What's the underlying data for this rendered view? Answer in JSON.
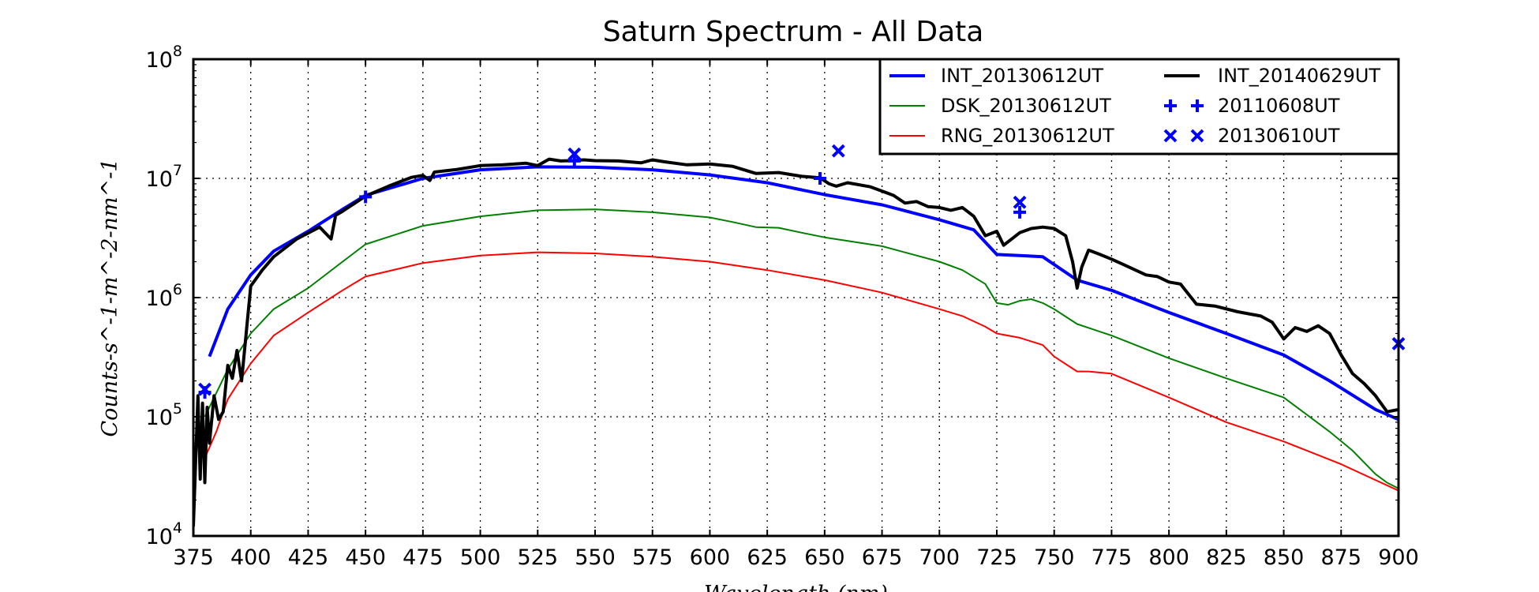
{
  "chart_data": {
    "type": "line",
    "title": "Saturn Spectrum - All Data",
    "ylabel": "Counts-s^-1-m^-2-nm^-1",
    "xlabel": "Wavelength (nm)",
    "xlim": [
      375,
      900
    ],
    "ylim": [
      10000,
      100000000
    ],
    "yscale": "log",
    "grid": true,
    "legend_position": "top-right",
    "x_ticks": [
      "375",
      "400",
      "425",
      "450",
      "475",
      "500",
      "525",
      "550",
      "575",
      "600",
      "625",
      "650",
      "675",
      "700",
      "725",
      "750",
      "775",
      "800",
      "825",
      "850",
      "875",
      "900"
    ],
    "y_ticks": [
      {
        "base": "10",
        "exp": "4",
        "value": 10000
      },
      {
        "base": "10",
        "exp": "5",
        "value": 100000
      },
      {
        "base": "10",
        "exp": "6",
        "value": 1000000
      },
      {
        "base": "10",
        "exp": "7",
        "value": 10000000
      },
      {
        "base": "10",
        "exp": "8",
        "value": 100000000
      }
    ],
    "series": [
      {
        "name": "INT_20130612UT",
        "kind": "line",
        "color": "#0000ff",
        "width": 4,
        "x": [
          382,
          390,
          400,
          410,
          425,
          440,
          450,
          475,
          500,
          525,
          550,
          575,
          600,
          625,
          650,
          675,
          700,
          715,
          725,
          735,
          745,
          760,
          775,
          800,
          825,
          850,
          870,
          890,
          900
        ],
        "y": [
          320000,
          800000,
          1550000,
          2450000,
          3600000,
          5500000,
          7200000,
          10000000,
          11800000,
          12500000,
          12400000,
          11800000,
          10700000,
          9200000,
          7300000,
          6000000,
          4500000,
          3700000,
          2300000,
          2250000,
          2200000,
          1400000,
          1150000,
          750000,
          500000,
          330000,
          200000,
          115000,
          95000
        ]
      },
      {
        "name": "INT_20140629UT",
        "kind": "line",
        "color": "#000000",
        "width": 4,
        "x": [
          375,
          377,
          378,
          379,
          380,
          381,
          382,
          384,
          386,
          388,
          390,
          392,
          394,
          396,
          398,
          400,
          405,
          410,
          420,
          430,
          435,
          437,
          440,
          450,
          460,
          470,
          475,
          478,
          480,
          490,
          500,
          510,
          520,
          525,
          530,
          535,
          540,
          545,
          550,
          560,
          570,
          575,
          580,
          590,
          600,
          610,
          620,
          630,
          640,
          648,
          652,
          655,
          660,
          670,
          680,
          685,
          690,
          695,
          700,
          705,
          710,
          715,
          720,
          725,
          728,
          735,
          740,
          745,
          750,
          755,
          758,
          760,
          762,
          765,
          770,
          775,
          780,
          790,
          795,
          800,
          805,
          808,
          812,
          820,
          830,
          840,
          845,
          850,
          855,
          860,
          865,
          870,
          875,
          880,
          885,
          890,
          895,
          900
        ],
        "y": [
          12000,
          150000,
          30000,
          130000,
          28000,
          120000,
          60000,
          150000,
          95000,
          110000,
          270000,
          210000,
          360000,
          200000,
          500000,
          1250000,
          1700000,
          2200000,
          3100000,
          3900000,
          3100000,
          4900000,
          5300000,
          7100000,
          8600000,
          10200000,
          10600000,
          9600000,
          11300000,
          11900000,
          12800000,
          13000000,
          13400000,
          12800000,
          14500000,
          14000000,
          14100000,
          14300000,
          14100000,
          14000000,
          13500000,
          14300000,
          13800000,
          13000000,
          13200000,
          12600000,
          11000000,
          11200000,
          10400000,
          10100000,
          9000000,
          8600000,
          9200000,
          8500000,
          7200000,
          6200000,
          6400000,
          5800000,
          5700000,
          5400000,
          5700000,
          4800000,
          3300000,
          3600000,
          2750000,
          3500000,
          3800000,
          3900000,
          3800000,
          3300000,
          2000000,
          1200000,
          1800000,
          2500000,
          2300000,
          2100000,
          1900000,
          1550000,
          1500000,
          1350000,
          1300000,
          1100000,
          880000,
          850000,
          760000,
          700000,
          620000,
          450000,
          560000,
          520000,
          580000,
          500000,
          330000,
          230000,
          190000,
          150000,
          110000,
          115000
        ]
      },
      {
        "name": "DSK_20130612UT",
        "kind": "line",
        "color": "#008000",
        "width": 2,
        "x": [
          380,
          390,
          400,
          410,
          425,
          440,
          450,
          475,
          500,
          525,
          550,
          575,
          600,
          610,
          620,
          630,
          640,
          650,
          675,
          700,
          710,
          720,
          725,
          730,
          735,
          740,
          745,
          750,
          760,
          775,
          800,
          825,
          850,
          870,
          880,
          890,
          895,
          900
        ],
        "y": [
          100000,
          250000,
          500000,
          800000,
          1200000,
          2000000,
          2800000,
          4000000,
          4800000,
          5400000,
          5500000,
          5200000,
          4700000,
          4300000,
          3900000,
          3850000,
          3500000,
          3200000,
          2700000,
          2000000,
          1700000,
          1300000,
          900000,
          870000,
          940000,
          970000,
          900000,
          800000,
          600000,
          480000,
          310000,
          210000,
          145000,
          75000,
          52000,
          33000,
          28000,
          25000
        ]
      },
      {
        "name": "RNG_20130612UT",
        "kind": "line",
        "color": "#ff0000",
        "width": 2,
        "x": [
          380,
          385,
          390,
          400,
          410,
          425,
          440,
          450,
          475,
          500,
          525,
          550,
          575,
          600,
          625,
          650,
          675,
          700,
          710,
          720,
          725,
          735,
          745,
          750,
          760,
          765,
          775,
          800,
          825,
          850,
          875,
          900
        ],
        "y": [
          45000,
          75000,
          140000,
          280000,
          480000,
          750000,
          1150000,
          1500000,
          1950000,
          2250000,
          2400000,
          2350000,
          2200000,
          2000000,
          1700000,
          1400000,
          1100000,
          800000,
          700000,
          570000,
          500000,
          460000,
          400000,
          320000,
          240000,
          240000,
          230000,
          145000,
          90000,
          62000,
          40000,
          24000
        ]
      },
      {
        "name": "20110608UT",
        "kind": "marker",
        "marker": "plus",
        "color": "#0000ff",
        "x": [
          380,
          450,
          541,
          648,
          735
        ],
        "y": [
          160000,
          7000000,
          14000000,
          10000000,
          5200000
        ]
      },
      {
        "name": "20130610UT",
        "kind": "marker",
        "marker": "x",
        "color": "#0000ff",
        "x": [
          380,
          541,
          656,
          735,
          900
        ],
        "y": [
          170000,
          16000000,
          17000000,
          6300000,
          410000
        ]
      }
    ]
  }
}
